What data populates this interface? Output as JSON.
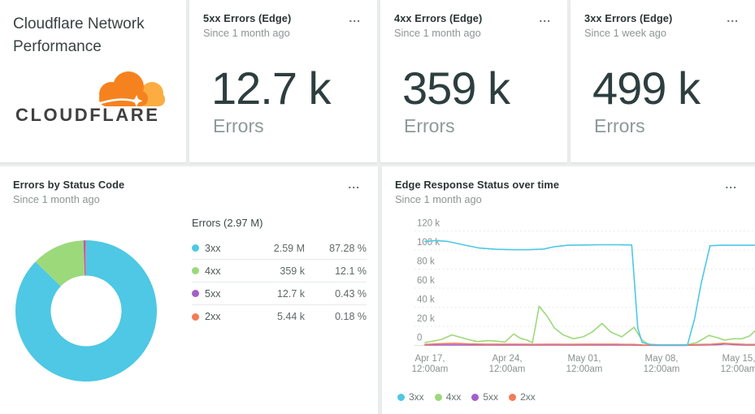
{
  "colors": {
    "cyan": "#4EC8E4",
    "green": "#9CD97B",
    "purple": "#A45FC9",
    "orange": "#F27C57",
    "logo_orange": "#F6821F",
    "logo_light_orange": "#FBAD41",
    "logo_text": "#404041"
  },
  "menu_icon": "...",
  "header_card": {
    "title": "Cloudflare Network Performance",
    "logo_text": "CLOUDFLARE"
  },
  "billboards": [
    {
      "title": "5xx Errors (Edge)",
      "subtitle": "Since 1 month ago",
      "value": "12.7 k",
      "unit": "Errors"
    },
    {
      "title": "4xx Errors (Edge)",
      "subtitle": "Since 1 month ago",
      "value": "359 k",
      "unit": "Errors"
    },
    {
      "title": "3xx Errors (Edge)",
      "subtitle": "Since 1 week ago",
      "value": "499 k",
      "unit": "Errors"
    }
  ],
  "pie_card": {
    "title": "Errors by Status Code",
    "subtitle": "Since 1 month ago",
    "legend_header": "Errors (2.97 M)"
  },
  "line_card": {
    "title": "Edge Response Status over time",
    "subtitle": "Since 1 month ago"
  },
  "chart_data": [
    {
      "type": "pie",
      "title": "Errors by Status Code",
      "total_label": "Errors (2.97 M)",
      "total": 2970000,
      "slices": [
        {
          "label": "3xx",
          "value": 2590000,
          "display": "2.59 M",
          "percent": 87.28,
          "percent_display": "87.28 %",
          "color": "#4EC8E4"
        },
        {
          "label": "4xx",
          "value": 359000,
          "display": "359 k",
          "percent": 12.1,
          "percent_display": "12.1 %",
          "color": "#9CD97B"
        },
        {
          "label": "5xx",
          "value": 12700,
          "display": "12.7 k",
          "percent": 0.43,
          "percent_display": "0.43 %",
          "color": "#A45FC9"
        },
        {
          "label": "2xx",
          "value": 5440,
          "display": "5.44 k",
          "percent": 0.18,
          "percent_display": "0.18 %",
          "color": "#F27C57"
        }
      ]
    },
    {
      "type": "line",
      "title": "Edge Response Status over time",
      "y_unit": "k",
      "ylim": [
        0,
        120000
      ],
      "grid": true,
      "legend_position": "bottom",
      "y_ticks": [
        "120 k",
        "100 k",
        "80 k",
        "60 k",
        "40 k",
        "20 k",
        "0"
      ],
      "x_ticks": [
        {
          "day": 0,
          "label1": "Apr 17,",
          "label2": "12:00am"
        },
        {
          "day": 7,
          "label1": "Apr 24,",
          "label2": "12:00am"
        },
        {
          "day": 14,
          "label1": "May 01,",
          "label2": "12:00am"
        },
        {
          "day": 21,
          "label1": "May 08,",
          "label2": "12:00am"
        },
        {
          "day": 28,
          "label1": "May 15,",
          "label2": "12:00am"
        }
      ],
      "series": [
        {
          "name": "3xx",
          "color": "#4EC8E4",
          "points": [
            [
              -0.45,
              109
            ],
            [
              0.6,
              110
            ],
            [
              1.6,
              109
            ],
            [
              3,
              105.5
            ],
            [
              4.5,
              102
            ],
            [
              6,
              100.8
            ],
            [
              7.5,
              100.3
            ],
            [
              9,
              100.3
            ],
            [
              10.3,
              101
            ],
            [
              11.3,
              103.5
            ],
            [
              12.5,
              105
            ],
            [
              14,
              105.3
            ],
            [
              15.5,
              105.5
            ],
            [
              17,
              105.5
            ],
            [
              18.3,
              105.3
            ],
            [
              18.85,
              18
            ],
            [
              19.25,
              3
            ],
            [
              20,
              1
            ],
            [
              21,
              0.5
            ],
            [
              22,
              0.5
            ],
            [
              23.35,
              0.5
            ],
            [
              24,
              28
            ],
            [
              24.6,
              65
            ],
            [
              25.4,
              104.5
            ],
            [
              26.5,
              105
            ],
            [
              28,
              105
            ],
            [
              29.45,
              105
            ]
          ]
        },
        {
          "name": "4xx",
          "color": "#9CD97B",
          "points": [
            [
              -0.45,
              3
            ],
            [
              1,
              6
            ],
            [
              2,
              11
            ],
            [
              2.6,
              9
            ],
            [
              3.5,
              6
            ],
            [
              4.3,
              4
            ],
            [
              5.2,
              5
            ],
            [
              6,
              4.5
            ],
            [
              6.8,
              3.5
            ],
            [
              7.6,
              12
            ],
            [
              8.2,
              7.5
            ],
            [
              8.8,
              5.5
            ],
            [
              9.3,
              3
            ],
            [
              9.9,
              41
            ],
            [
              10.6,
              31
            ],
            [
              11.3,
              18
            ],
            [
              12.1,
              11
            ],
            [
              13,
              7
            ],
            [
              13.9,
              9
            ],
            [
              14.7,
              14
            ],
            [
              15.6,
              23
            ],
            [
              16.4,
              14
            ],
            [
              17.4,
              9
            ],
            [
              18.5,
              19
            ],
            [
              19.2,
              6
            ],
            [
              19.8,
              1
            ],
            [
              21,
              0.4
            ],
            [
              22,
              0.4
            ],
            [
              23.3,
              0.6
            ],
            [
              24.2,
              3
            ],
            [
              25.3,
              10.5
            ],
            [
              26.1,
              8
            ],
            [
              26.7,
              5.5
            ],
            [
              27.5,
              7
            ],
            [
              28.3,
              7
            ],
            [
              29,
              10
            ],
            [
              29.45,
              15
            ]
          ]
        },
        {
          "name": "5xx",
          "color": "#A45FC9",
          "points": [
            [
              -0.45,
              0.4
            ],
            [
              2,
              0.5
            ],
            [
              4,
              0.4
            ],
            [
              6,
              0.45
            ],
            [
              8,
              0.4
            ],
            [
              10,
              0.45
            ],
            [
              12,
              0.4
            ],
            [
              14,
              0.45
            ],
            [
              16,
              0.45
            ],
            [
              18,
              0.4
            ],
            [
              19.3,
              0.15
            ],
            [
              21,
              0.1
            ],
            [
              23,
              0.1
            ],
            [
              24.5,
              0.4
            ],
            [
              26,
              0.8
            ],
            [
              26.8,
              1.5
            ],
            [
              27.7,
              0.8
            ],
            [
              28.6,
              0.5
            ],
            [
              29.45,
              0.4
            ]
          ]
        },
        {
          "name": "2xx",
          "color": "#F27C57",
          "points": [
            [
              -0.45,
              1
            ],
            [
              1,
              1.8
            ],
            [
              2.2,
              2.2
            ],
            [
              3.5,
              1.5
            ],
            [
              5,
              1.2
            ],
            [
              6.5,
              1.2
            ],
            [
              8,
              1.3
            ],
            [
              9.5,
              1.1
            ],
            [
              11,
              1.2
            ],
            [
              12.5,
              1.1
            ],
            [
              14,
              1.2
            ],
            [
              15.5,
              1.3
            ],
            [
              17,
              1.2
            ],
            [
              18.5,
              1
            ],
            [
              19.3,
              0.5
            ],
            [
              20.5,
              0.3
            ],
            [
              22,
              0.3
            ],
            [
              23.4,
              0.5
            ],
            [
              24.5,
              1
            ],
            [
              25.5,
              1.2
            ],
            [
              26.6,
              2.2
            ],
            [
              27.6,
              1.5
            ],
            [
              28.5,
              1.1
            ],
            [
              29.45,
              1
            ]
          ]
        }
      ]
    }
  ]
}
